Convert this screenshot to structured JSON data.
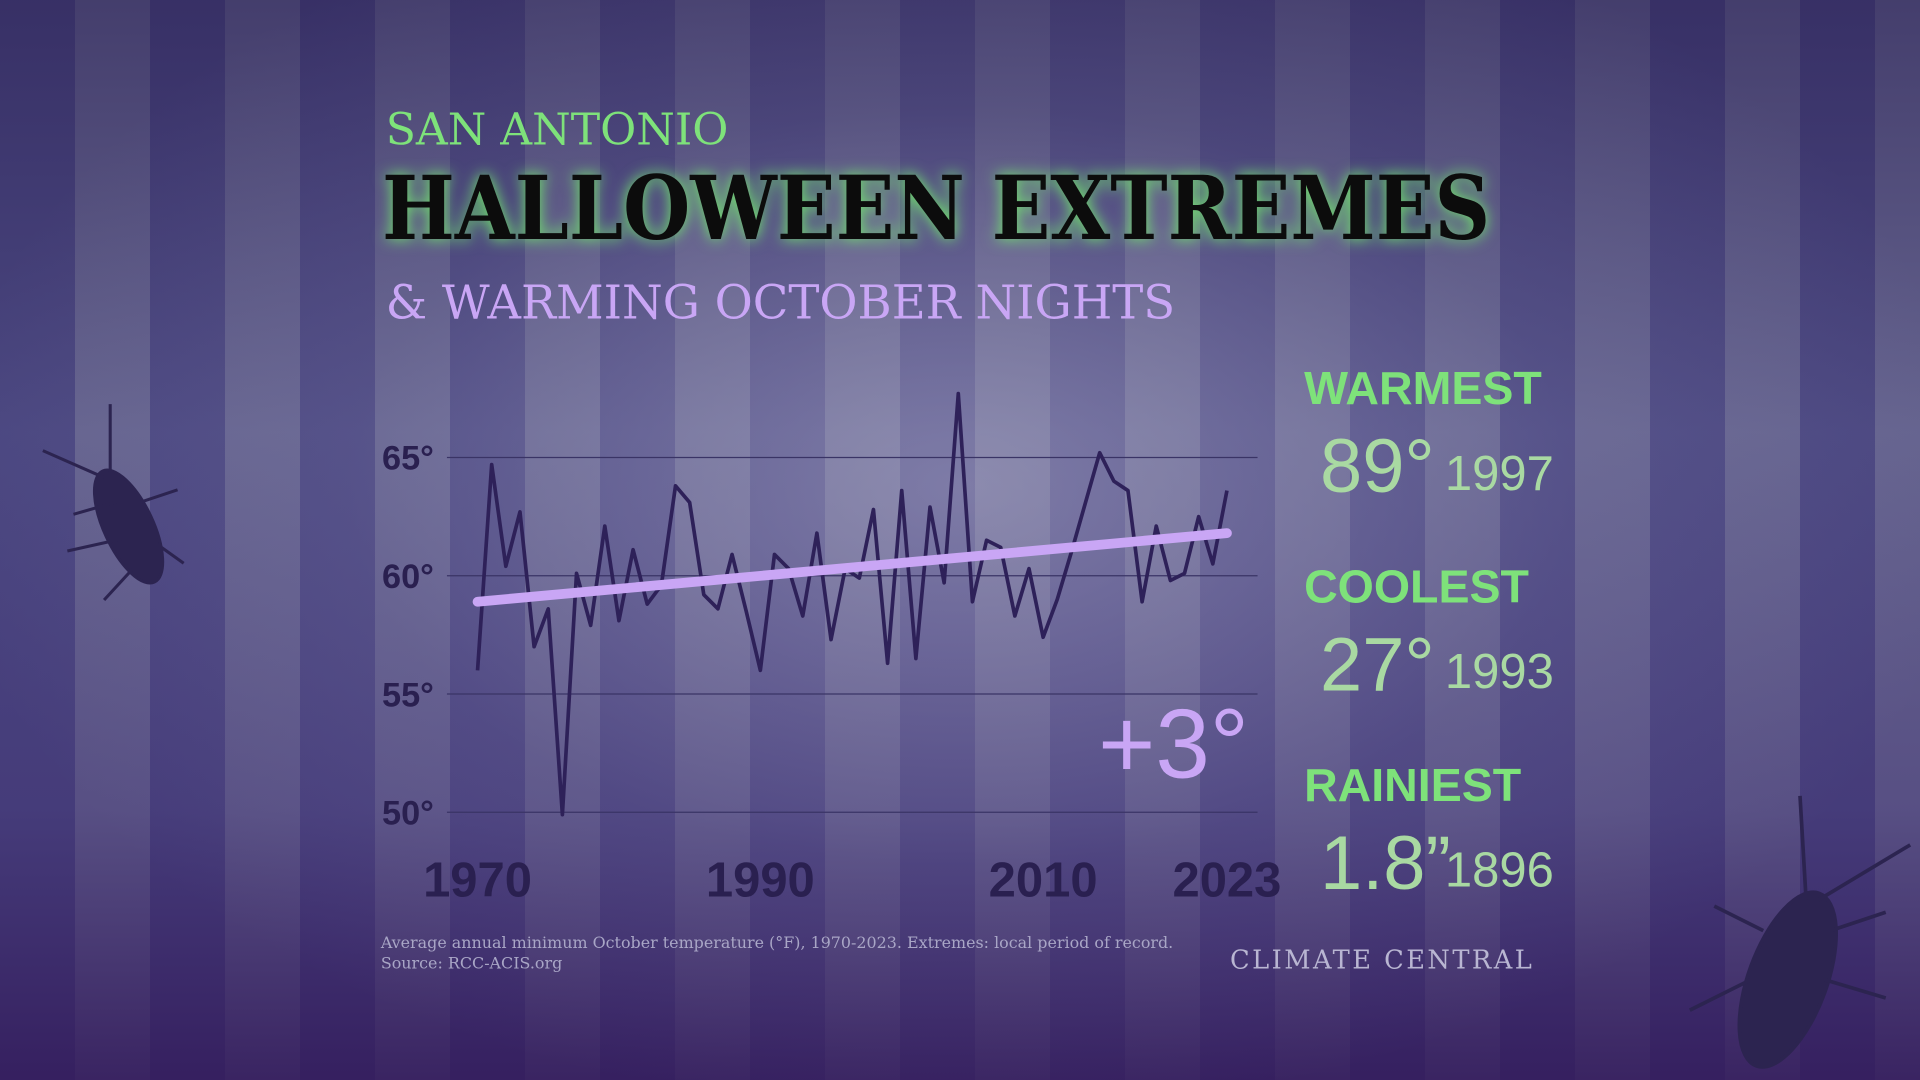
{
  "chart_data": {
    "type": "line",
    "kicker": "SAN ANTONIO",
    "title": "HALLOWEEN EXTREMES",
    "subtitle": "& WARMING OCTOBER NIGHTS",
    "x": [
      1970,
      1971,
      1972,
      1973,
      1974,
      1975,
      1976,
      1977,
      1978,
      1979,
      1980,
      1981,
      1982,
      1983,
      1984,
      1985,
      1986,
      1987,
      1988,
      1989,
      1990,
      1991,
      1992,
      1993,
      1994,
      1995,
      1996,
      1997,
      1998,
      1999,
      2000,
      2001,
      2002,
      2003,
      2004,
      2005,
      2006,
      2007,
      2008,
      2009,
      2010,
      2011,
      2012,
      2013,
      2014,
      2015,
      2016,
      2017,
      2018,
      2019,
      2020,
      2021,
      2022,
      2023
    ],
    "series": [
      {
        "color": "#2e2159",
        "values": [
          56.0,
          64.7,
          60.4,
          62.7,
          57.0,
          58.6,
          49.9,
          60.1,
          57.9,
          62.1,
          58.1,
          61.1,
          58.8,
          59.6,
          63.8,
          63.1,
          59.2,
          58.6,
          60.9,
          58.5,
          56.0,
          60.9,
          60.3,
          58.3,
          61.8,
          57.3,
          60.3,
          59.9,
          62.8,
          56.3,
          63.6,
          56.5,
          62.9,
          59.7,
          67.7,
          58.9,
          61.5,
          61.2,
          58.3,
          60.3,
          57.4,
          59.0,
          61.0,
          63.1,
          65.2,
          64.0,
          63.6,
          58.9,
          62.1,
          59.8,
          60.1,
          62.5,
          60.5,
          63.6
        ]
      }
    ],
    "trend": {
      "color": "#c9a6f5",
      "x": [
        1970,
        2023
      ],
      "values": [
        58.9,
        61.8
      ]
    },
    "annotation": "+3°",
    "xlim": [
      1970,
      2023
    ],
    "xticks": [
      1970,
      1990,
      2010,
      2023
    ],
    "ylim": [
      48,
      70
    ],
    "yticks": [
      {
        "value": 50,
        "label": "50°"
      },
      {
        "value": 55,
        "label": "55°"
      },
      {
        "value": 60,
        "label": "60°"
      },
      {
        "value": 65,
        "label": "65°"
      }
    ],
    "grid": true,
    "stats": [
      {
        "label": "WARMEST",
        "value": "89°",
        "year": "1997"
      },
      {
        "label": "COOLEST",
        "value": "27°",
        "year": "1993"
      },
      {
        "label": "RAINIEST",
        "value": "1.8”",
        "year": "1896"
      }
    ],
    "footnote": "Average annual minimum October temperature (°F), 1970-2023. Extremes: local period of record.",
    "source": "Source: RCC-ACIS.org",
    "brand": "CLIMATE CENTRAL"
  }
}
